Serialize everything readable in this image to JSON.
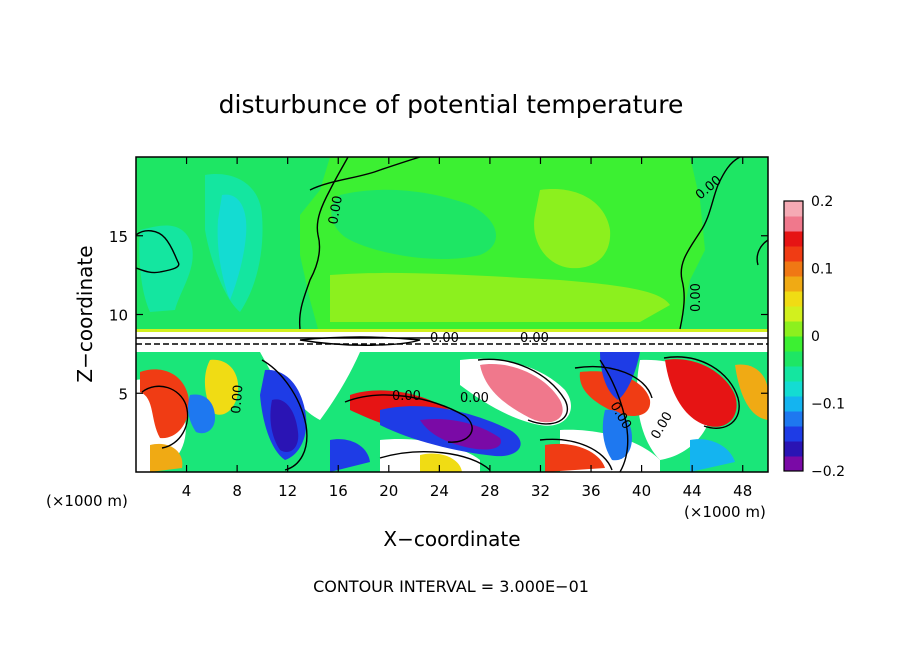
{
  "chart_data": {
    "type": "heatmap",
    "title": "disturbunce of potential temperature",
    "xlabel": "X−coordinate",
    "ylabel": "Z−coordinate",
    "x_unit_left": "(×1000 m)",
    "x_unit_right": "(×1000 m)",
    "xlim": [
      0,
      50
    ],
    "ylim": [
      0,
      20
    ],
    "x_ticks": [
      4,
      8,
      12,
      16,
      20,
      24,
      28,
      32,
      36,
      40,
      44,
      48
    ],
    "x_tick_labels": [
      "4",
      "8",
      "12",
      "16",
      "20",
      "24",
      "28",
      "32",
      "36",
      "40",
      "44",
      "48"
    ],
    "y_ticks": [
      5,
      10,
      15
    ],
    "y_tick_labels": [
      "5",
      "10",
      "15"
    ],
    "colorbar": {
      "range": [
        -0.2,
        0.2
      ],
      "tick_values": [
        0.2,
        0.1,
        0,
        -0.1,
        -0.2
      ],
      "tick_labels": [
        "0.2",
        "0.1",
        "0",
        "−0.1",
        "−0.2"
      ],
      "colors": [
        "#7a0aa6",
        "#2a14b4",
        "#1e3ce6",
        "#1e78f0",
        "#14b4f0",
        "#14dcd2",
        "#14e6a0",
        "#1ee664",
        "#3cf032",
        "#8cf01e",
        "#d2f01e",
        "#f0dc14",
        "#f0aa14",
        "#f07814",
        "#f03c14",
        "#e61414",
        "#f0788c",
        "#f5aab4"
      ]
    },
    "contour_labels": [
      "0.00",
      "0.00",
      "0.00",
      "0.00",
      "0.00",
      "0.00",
      "0.00",
      "0.00",
      "0.00",
      "0.00"
    ],
    "grid": false,
    "footer": "CONTOUR INTERVAL = 3.000E−01"
  }
}
